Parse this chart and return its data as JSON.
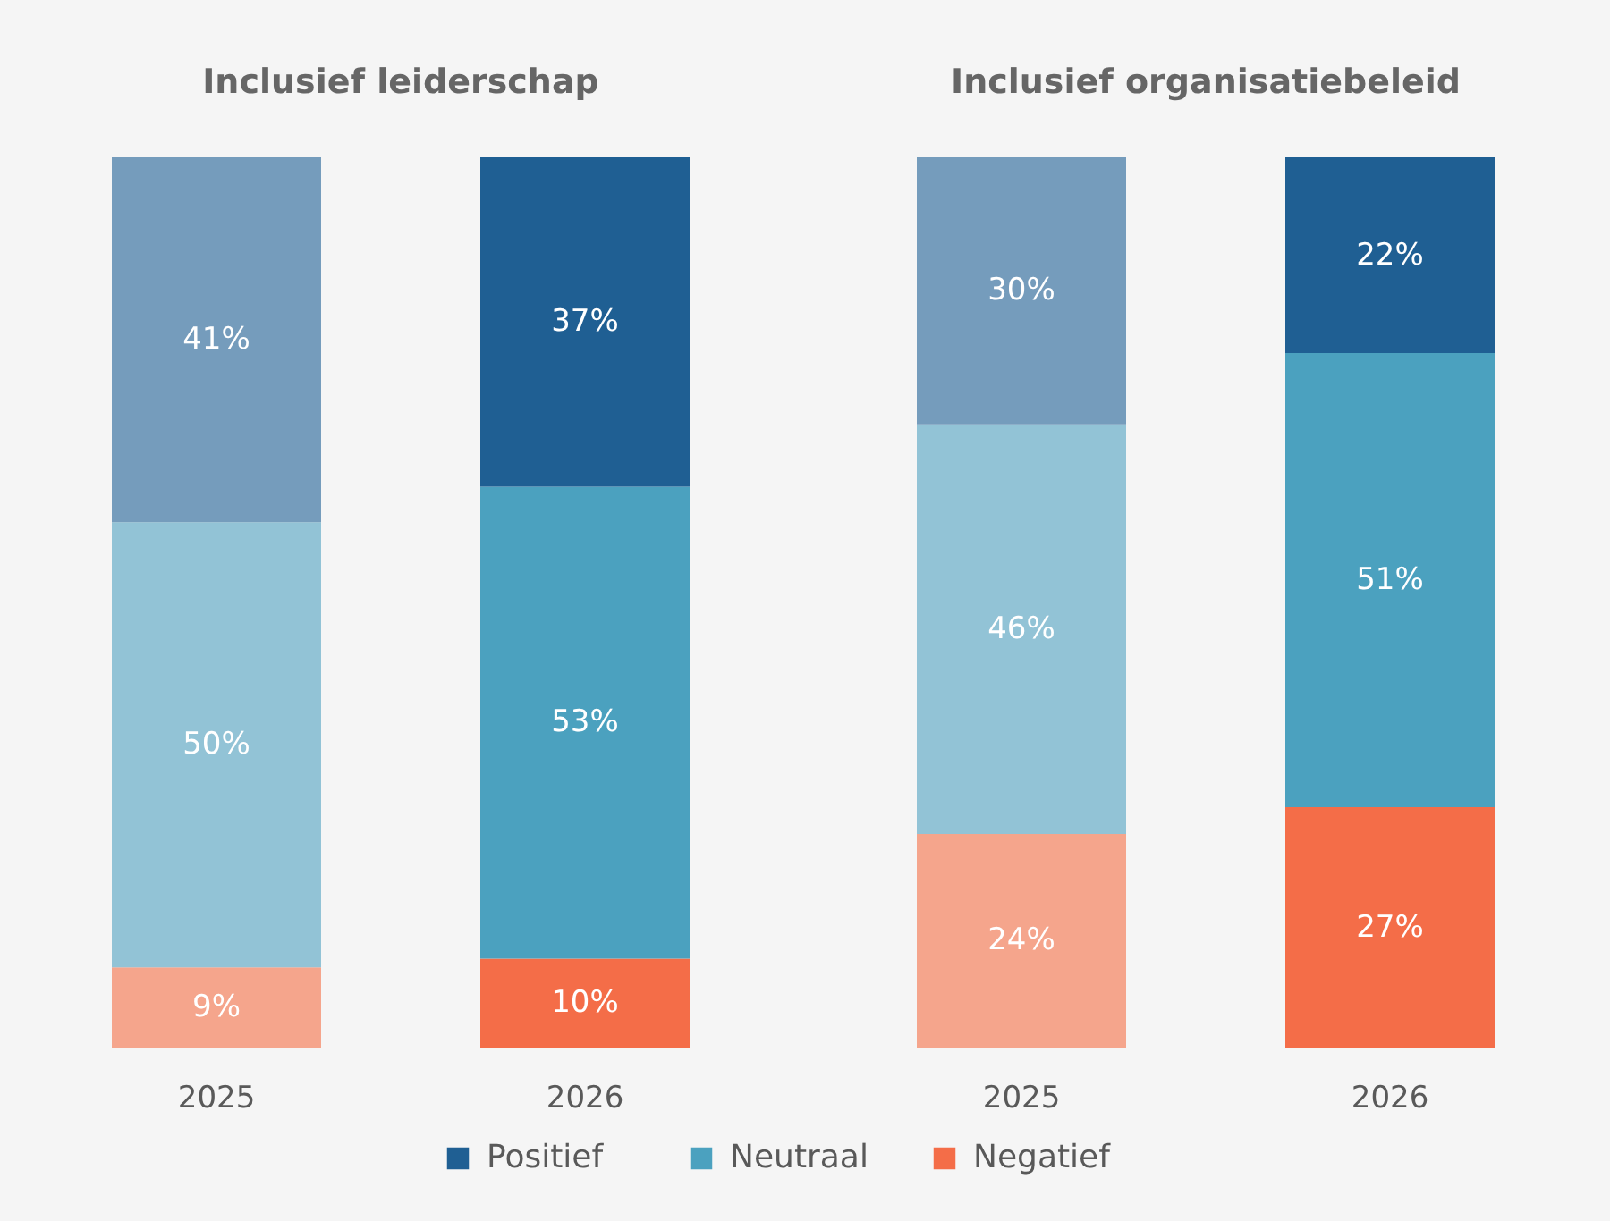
{
  "chart_data": [
    {
      "type": "bar",
      "title": "Inclusief leiderschap",
      "stacked": true,
      "categories": [
        "2025",
        "2026"
      ],
      "legend": "bottom",
      "series": [
        {
          "name": "Negatief",
          "color": "#f46d48",
          "colors": [
            "#f5a58c",
            "#f46d48"
          ],
          "values": [
            9,
            10
          ],
          "value_labels": [
            "9%",
            "10%"
          ]
        },
        {
          "name": "Neutraal",
          "color": "#4ba1bf",
          "colors": [
            "#92c3d6",
            "#4ba1bf"
          ],
          "values": [
            50,
            53
          ],
          "value_labels": [
            "50%",
            "53%"
          ]
        },
        {
          "name": "Positief",
          "color": "#1f5f93",
          "colors": [
            "#759cbc",
            "#1f5f93"
          ],
          "values": [
            41,
            37
          ],
          "value_labels": [
            "41%",
            "37%"
          ]
        }
      ]
    },
    {
      "type": "bar",
      "title": "Inclusief organisatiebeleid",
      "stacked": true,
      "categories": [
        "2025",
        "2026"
      ],
      "series": [
        {
          "colors": [
            "#f5a58c",
            "#f46d48"
          ],
          "values": [
            24,
            27
          ],
          "value_labels": [
            "24%",
            "27%"
          ]
        },
        {
          "colors": [
            "#92c3d6",
            "#4ba1bf"
          ],
          "values": [
            46,
            51
          ],
          "value_labels": [
            "46%",
            "51%"
          ]
        },
        {
          "colors": [
            "#759cbc",
            "#1f5f93"
          ],
          "values": [
            30,
            22
          ],
          "value_labels": [
            "30%",
            "22%"
          ]
        }
      ]
    }
  ]
}
